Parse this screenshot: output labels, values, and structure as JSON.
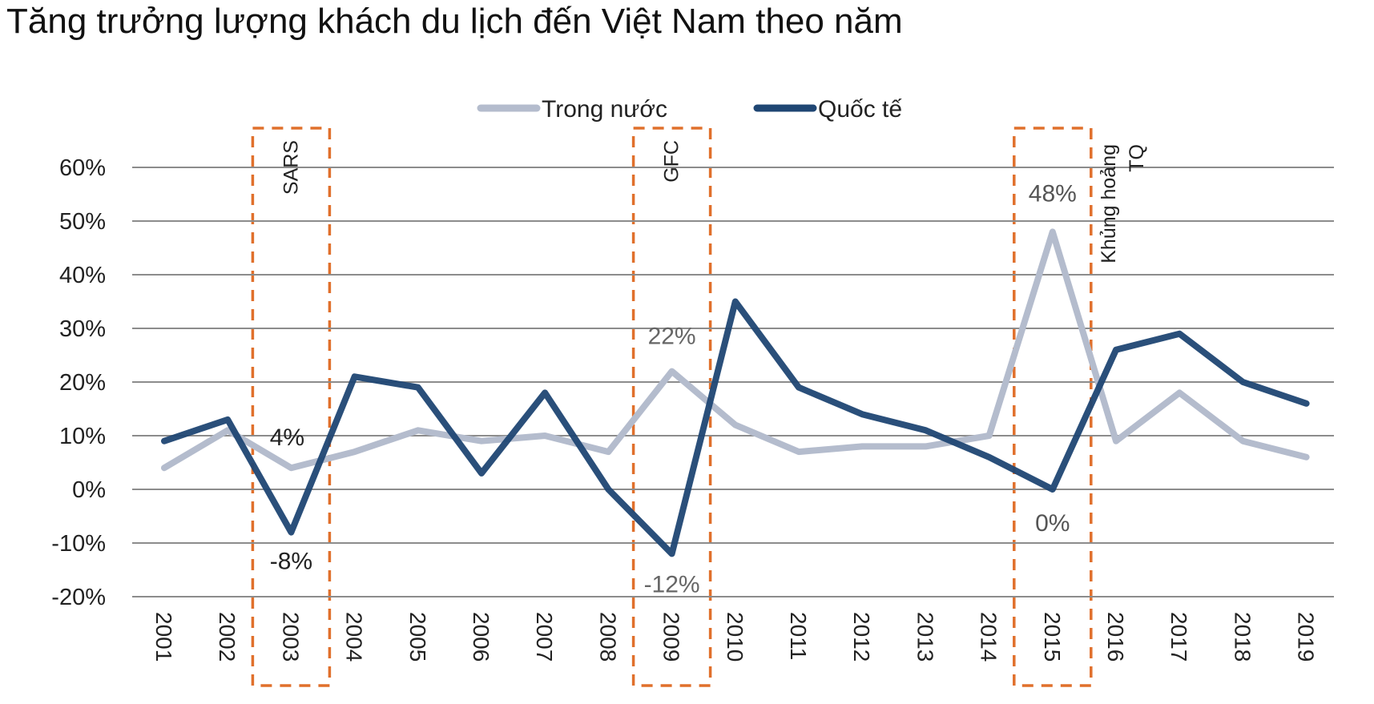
{
  "chart_data": {
    "type": "line",
    "title": "Tăng trưởng lượng khách du lịch đến Việt Nam theo năm",
    "x": [
      "2001",
      "2002",
      "2003",
      "2004",
      "2005",
      "2006",
      "2007",
      "2008",
      "2009",
      "2010",
      "2011",
      "2012",
      "2013",
      "2014",
      "2015",
      "2016",
      "2017",
      "2018",
      "2019"
    ],
    "series": [
      {
        "name": "Trong nước",
        "color": "#b4bccd",
        "values": [
          4,
          11,
          4,
          7,
          11,
          9,
          10,
          7,
          22,
          12,
          7,
          8,
          8,
          10,
          48,
          9,
          18,
          9,
          6
        ]
      },
      {
        "name": "Quốc tế",
        "color": "#1f4673",
        "values": [
          9,
          13,
          -8,
          21,
          19,
          3,
          18,
          0,
          -12,
          35,
          19,
          14,
          11,
          6,
          0,
          26,
          29,
          20,
          16
        ]
      }
    ],
    "ylim": [
      -20,
      60
    ],
    "yticks": [
      -20,
      -10,
      0,
      10,
      20,
      30,
      40,
      50,
      60
    ],
    "ytick_labels": [
      "-20%",
      "-10%",
      "0%",
      "10%",
      "20%",
      "30%",
      "40%",
      "50%",
      "60%"
    ],
    "grid": true,
    "legend": "top-center",
    "events": [
      {
        "label": "SARS",
        "year": "2003"
      },
      {
        "label": "GFC",
        "year": "2009"
      },
      {
        "label": "Khủng hoảng",
        "label2": "TQ",
        "year": "2015"
      }
    ],
    "data_labels": [
      {
        "text": "4%",
        "year": "2003",
        "value": 4,
        "color": "#222222"
      },
      {
        "text": "-8%",
        "year": "2003",
        "value": -8,
        "color": "#222222"
      },
      {
        "text": "22%",
        "year": "2009",
        "value": 22,
        "color": "#666666"
      },
      {
        "text": "-12%",
        "year": "2009",
        "value": -12,
        "color": "#666666"
      },
      {
        "text": "48%",
        "year": "2015",
        "value": 48,
        "color": "#555555"
      },
      {
        "text": "0%",
        "year": "2015",
        "value": 0,
        "color": "#555555"
      }
    ],
    "highlight_color": "#e0702c"
  }
}
